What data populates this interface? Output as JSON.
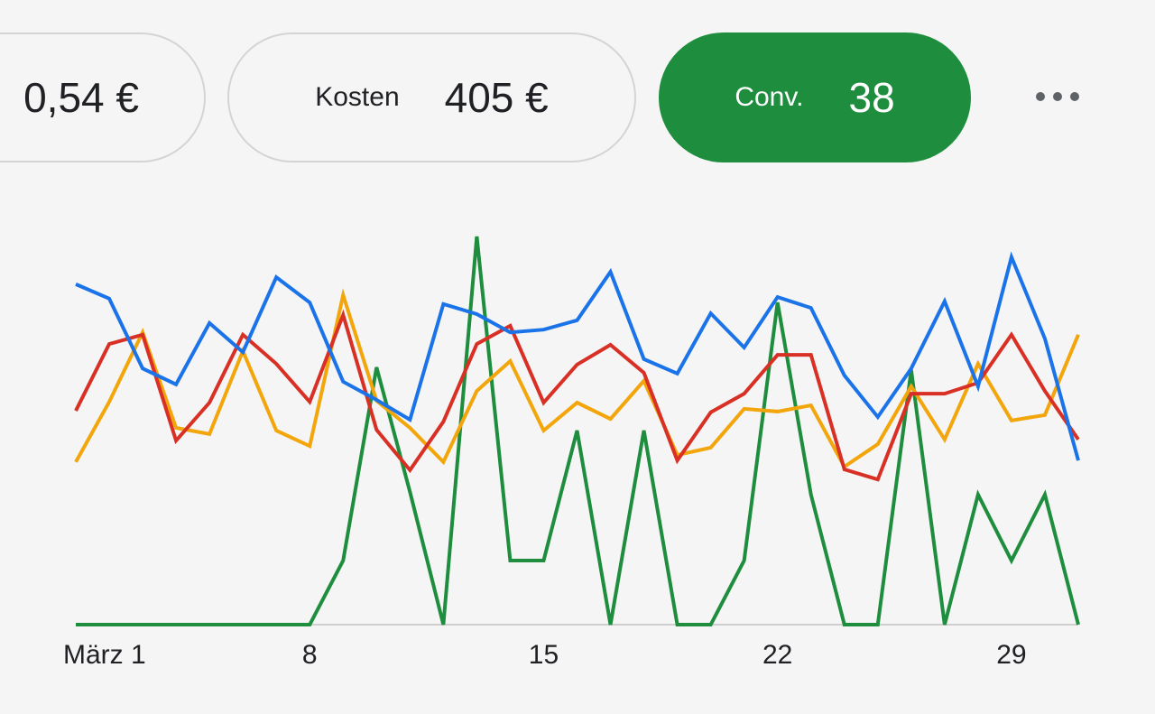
{
  "metrics": [
    {
      "value": "0,54 €"
    },
    {
      "label": "Kosten",
      "value": "405 €"
    },
    {
      "label": "Conv.",
      "value": "38"
    }
  ],
  "chart_data": {
    "type": "line",
    "categories": [
      "März 1",
      null,
      null,
      null,
      null,
      null,
      null,
      "8",
      null,
      null,
      null,
      null,
      null,
      null,
      "15",
      null,
      null,
      null,
      null,
      null,
      null,
      "22",
      null,
      null,
      null,
      null,
      null,
      null,
      "29",
      null,
      null
    ],
    "ylim": [
      0,
      100
    ],
    "series": [
      {
        "color": "#1e8e3e",
        "values": [
          0,
          0,
          0,
          0,
          0,
          0,
          0,
          0,
          16.5,
          66.3,
          34.2,
          0,
          100,
          16.5,
          16.5,
          50,
          0,
          50,
          0,
          0,
          16.5,
          83,
          33.5,
          0,
          0,
          65.6,
          0,
          33.5,
          16.5,
          33.5,
          0
        ]
      },
      {
        "color": "#f2a60c",
        "values": [
          41.9,
          57.4,
          75.3,
          50.7,
          49.1,
          70.5,
          50,
          46,
          84.9,
          57.7,
          50.7,
          41.9,
          60.2,
          67.9,
          50,
          57.2,
          53,
          62.8,
          43.7,
          45.6,
          55.6,
          54.9,
          56.5,
          40.7,
          46.5,
          61.4,
          47.7,
          67.2,
          52.6,
          54,
          74.7
        ]
      },
      {
        "color": "#d93025",
        "values": [
          55.1,
          72.3,
          74.7,
          47.4,
          57.2,
          74.7,
          67.2,
          57.4,
          79.8,
          50.2,
          39.8,
          52.3,
          72.3,
          77,
          57.2,
          67,
          72.1,
          64.9,
          42.3,
          54.7,
          59.5,
          69.5,
          69.5,
          40,
          37.4,
          59.5,
          59.5,
          62.3,
          74.7,
          60.2,
          47.7
        ]
      },
      {
        "color": "#1a73e8",
        "values": [
          87.7,
          84,
          66,
          61.9,
          77.7,
          70.2,
          89.5,
          83,
          62.6,
          57.9,
          52.8,
          82.6,
          80,
          75.3,
          76,
          78.4,
          90.9,
          68.4,
          64.7,
          80.2,
          71.4,
          84.4,
          81.6,
          64.2,
          53.5,
          66,
          83.3,
          61.4,
          94.7,
          73.7,
          42.3
        ]
      }
    ]
  }
}
